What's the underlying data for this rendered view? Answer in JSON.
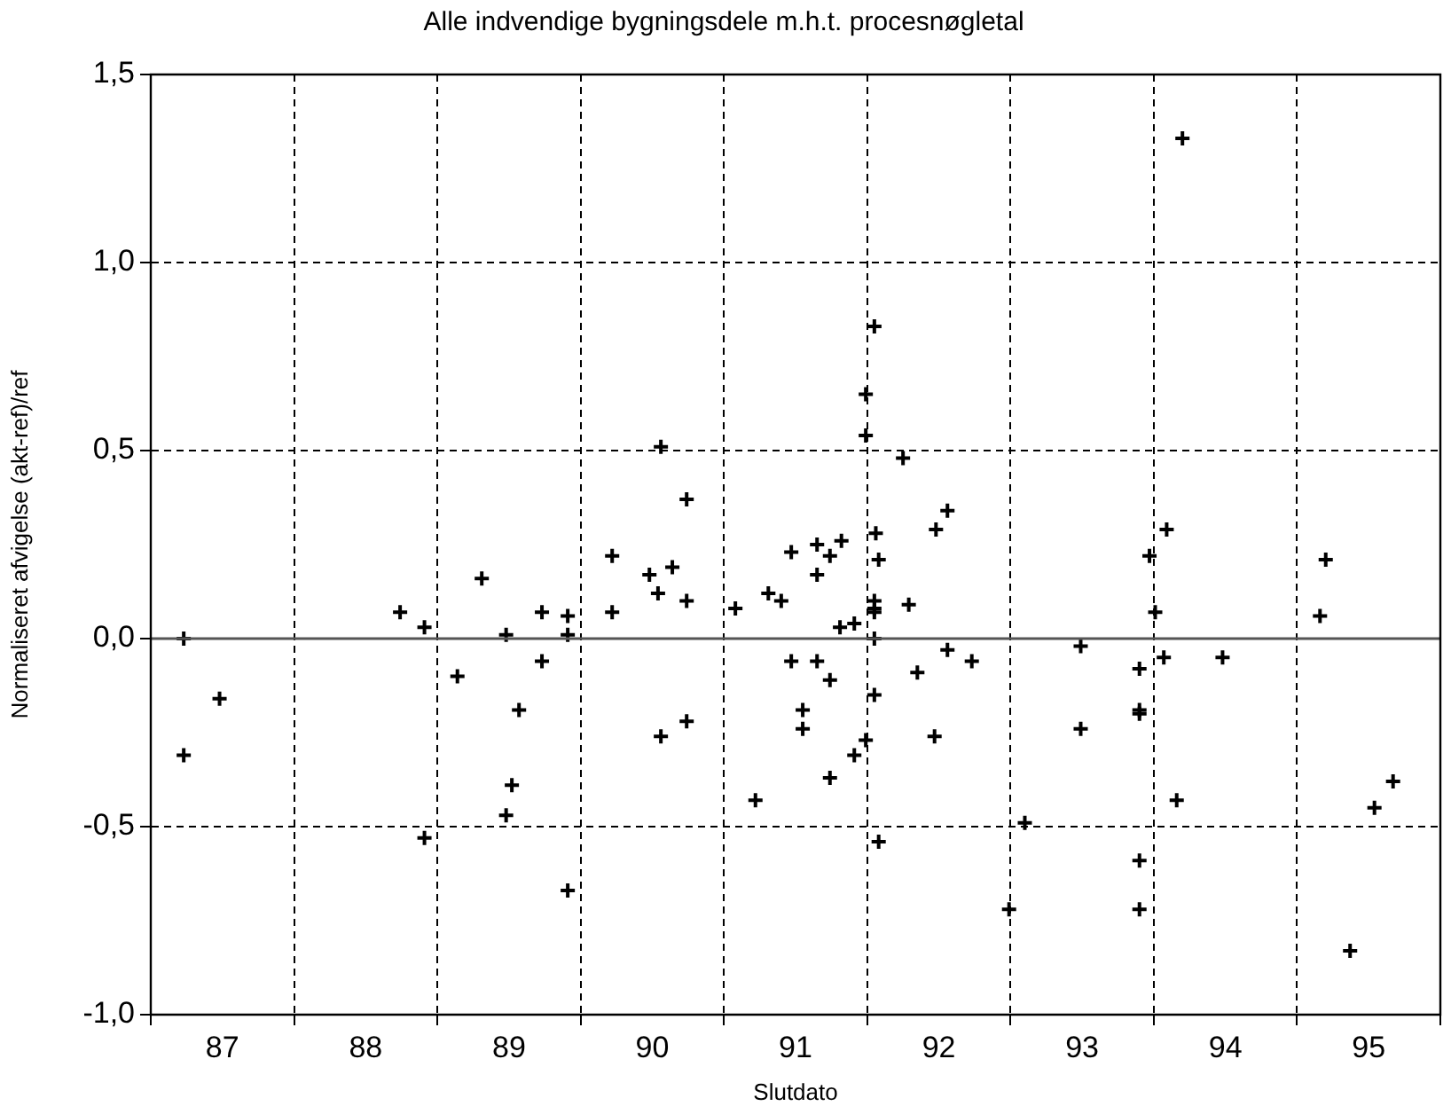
{
  "chart_data": {
    "type": "scatter",
    "title": "Alle indvendige bygningsdele m.h.t. procesnøgletal",
    "xlabel": "Slutdato",
    "ylabel": "Normaliseret afvigelse (akt-ref)/ref",
    "x": [
      86.73,
      86.73,
      86.98,
      88.24,
      88.41,
      88.41,
      88.64,
      88.81,
      88.98,
      89.07,
      89.02,
      88.98,
      89.23,
      89.23,
      89.41,
      89.41,
      89.41,
      91.55,
      91.49,
      91.49,
      91.75,
      90.06,
      90.24,
      92.06,
      91.98,
      91.56,
      91.58,
      89.72,
      89.98,
      90.14,
      90.97,
      91.15,
      91.24,
      91.32,
      91.15,
      89.72,
      90.04,
      90.24,
      90.58,
      90.81,
      90.9,
      91.31,
      91.41,
      91.55,
      91.55,
      91.55,
      91.79,
      91.55,
      90.97,
      91.15,
      91.24,
      91.55,
      92.06,
      92.23,
      91.85,
      91.05,
      91.05,
      90.24,
      90.06,
      91.49,
      91.41,
      91.24,
      91.97,
      90.72,
      92.6,
      91.58,
      92.49,
      93.7,
      93.59,
      93.47,
      94.7,
      93.51,
      94.66,
      92.99,
      93.57,
      93.98,
      93.4,
      93.4,
      93.4,
      92.99,
      93.66,
      95.17,
      95.04,
      93.4,
      93.4,
      94.87
    ],
    "values": [
      0,
      -0.31,
      -0.16,
      0.07,
      0.03,
      -0.53,
      -0.1,
      0.16,
      0.01,
      -0.19,
      -0.39,
      -0.47,
      0.07,
      -0.06,
      0.06,
      0.01,
      -0.67,
      0.83,
      0.65,
      0.54,
      0.48,
      0.51,
      0.37,
      0.34,
      0.29,
      0.28,
      0.21,
      0.22,
      0.17,
      0.19,
      0.23,
      0.25,
      0.22,
      0.26,
      0.17,
      0.07,
      0.12,
      0.1,
      0.08,
      0.12,
      0.1,
      0.03,
      0.04,
      0.1,
      0.08,
      0.07,
      0.09,
      0,
      -0.06,
      -0.06,
      -0.11,
      -0.15,
      -0.03,
      -0.06,
      -0.09,
      -0.19,
      -0.24,
      -0.22,
      -0.26,
      -0.27,
      -0.31,
      -0.37,
      -0.26,
      -0.43,
      -0.49,
      -0.54,
      -0.72,
      1.33,
      0.29,
      0.22,
      0.21,
      0.07,
      0.06,
      -0.02,
      -0.05,
      -0.05,
      -0.08,
      -0.19,
      -0.2,
      -0.24,
      -0.43,
      -0.38,
      -0.45,
      -0.59,
      -0.72,
      -0.83
    ],
    "color": "#000000",
    "marker": "cross",
    "grid": true,
    "legend": false,
    "xlim": [
      86.5,
      95.5
    ],
    "xticks": [
      {
        "value": 86.5,
        "label": null
      },
      87,
      {
        "value": 87.5,
        "label": null
      },
      88,
      {
        "value": 88.5,
        "label": null
      },
      89,
      {
        "value": 89.5,
        "label": null
      },
      90,
      {
        "value": 90.5,
        "label": null
      },
      91,
      {
        "value": 91.5,
        "label": null
      },
      92,
      {
        "value": 92.5,
        "label": null
      },
      93,
      {
        "value": 93.5,
        "label": null
      },
      94,
      {
        "value": 94.5,
        "label": null
      },
      95,
      {
        "value": 95.5,
        "label": null
      }
    ],
    "ylim": [
      -1,
      1.5
    ],
    "yticks": [
      {
        "value": -1,
        "label": "-1,0"
      },
      {
        "value": -0.5,
        "label": "-0,5"
      },
      {
        "value": 0,
        "label": "0,0"
      },
      {
        "value": 0.5,
        "label": "0,5"
      },
      {
        "value": 1,
        "label": "1,0"
      },
      {
        "value": 1.5,
        "label": "1,5"
      }
    ],
    "ref_lines": [
      {
        "axis": "y",
        "value": 0,
        "color": "#555555",
        "line_style": "solid"
      }
    ]
  }
}
